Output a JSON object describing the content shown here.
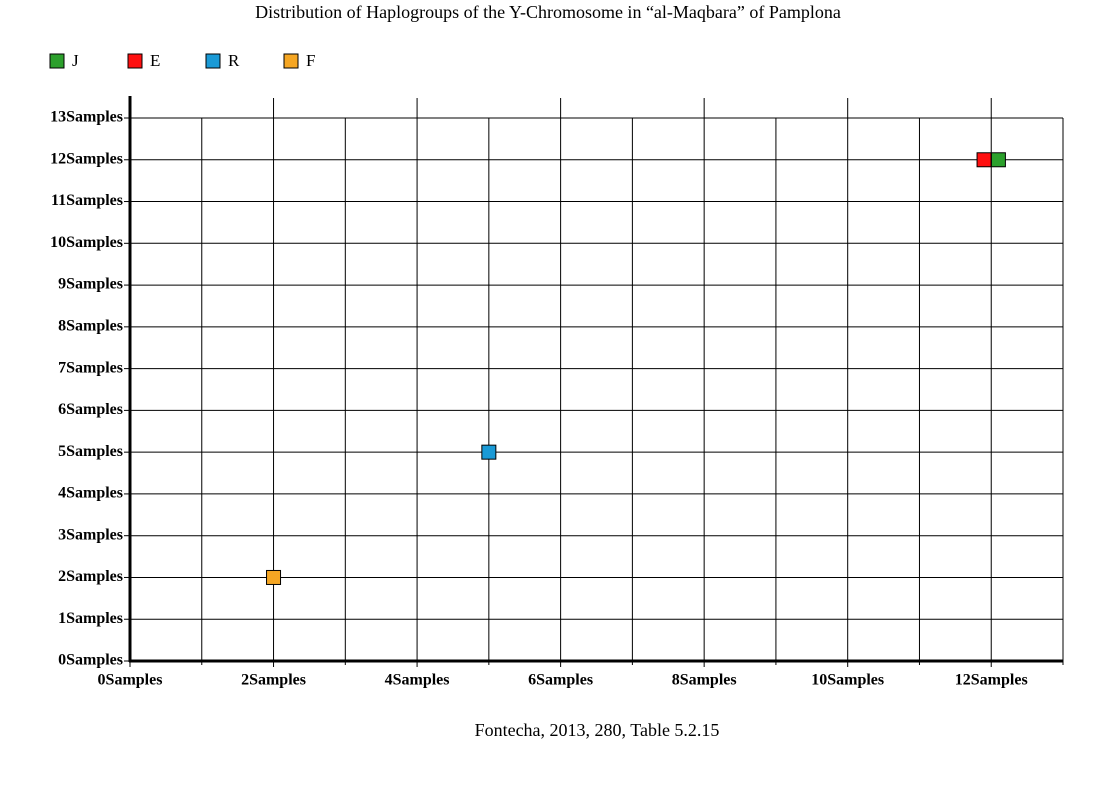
{
  "chart_data": {
    "type": "scatter",
    "title": "Distribution of Haplogroups of the Y-Chromosome in “al-Maqbara” of Pamplona",
    "note": "Fontecha, 2013, 280, Table 5.2.15",
    "series": [
      {
        "name": "J",
        "color": "#2ca02c",
        "x": [
          12.1
        ],
        "values": [
          12
        ]
      },
      {
        "name": "E",
        "color": "#ff1010",
        "x": [
          11.9
        ],
        "values": [
          12
        ]
      },
      {
        "name": "R",
        "color": "#1a9ad6",
        "x": [
          5
        ],
        "values": [
          5
        ]
      },
      {
        "name": "F",
        "color": "#f5a623",
        "x": [
          2
        ],
        "values": [
          2
        ]
      }
    ],
    "xlim": [
      0,
      13
    ],
    "xticks": [
      {
        "value": 0,
        "label": "0Samples"
      },
      {
        "value": 2,
        "label": "2Samples"
      },
      {
        "value": 4,
        "label": "4Samples"
      },
      {
        "value": 6,
        "label": "6Samples"
      },
      {
        "value": 8,
        "label": "8Samples"
      },
      {
        "value": 10,
        "label": "10Samples"
      },
      {
        "value": 12,
        "label": "12Samples"
      }
    ],
    "xminorticks": [
      1,
      3,
      5,
      7,
      9,
      11,
      13
    ],
    "ylim": [
      0,
      13
    ],
    "yticks": [
      {
        "value": 0,
        "label": "0Samples"
      },
      {
        "value": 1,
        "label": "1Samples"
      },
      {
        "value": 2,
        "label": "2Samples"
      },
      {
        "value": 3,
        "label": "3Samples"
      },
      {
        "value": 4,
        "label": "4Samples"
      },
      {
        "value": 5,
        "label": "5Samples"
      },
      {
        "value": 6,
        "label": "6Samples"
      },
      {
        "value": 7,
        "label": "7Samples"
      },
      {
        "value": 8,
        "label": "8Samples"
      },
      {
        "value": 9,
        "label": "9Samples"
      },
      {
        "value": 10,
        "label": "10Samples"
      },
      {
        "value": 11,
        "label": "11Samples"
      },
      {
        "value": 12,
        "label": "12Samples"
      },
      {
        "value": 13,
        "label": "13Samples"
      }
    ],
    "grid": true,
    "legend": "top-left"
  }
}
